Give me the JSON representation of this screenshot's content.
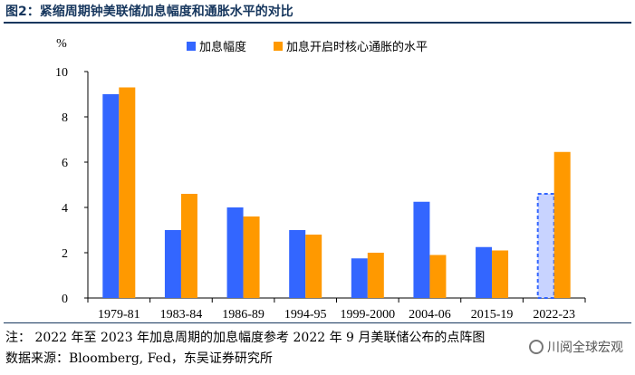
{
  "title": "图2：紧缩周期钟美联储加息幅度和通胀水平的对比",
  "notes": {
    "note1": "注：    2022 年至 2023 年加息周期的加息幅度参考 2022 年 9 月美联储公布的点阵图",
    "note2": "数据来源：Bloomberg, Fed，东吴证券研究所"
  },
  "watermark": "川阅全球宏观",
  "colors": {
    "blue": "#3366FF",
    "orange": "#FF9900",
    "title": "#17375E"
  },
  "chart_data": {
    "type": "bar",
    "ylabel": "%",
    "ylim": [
      0,
      10
    ],
    "yticks": [
      "0",
      "2",
      "4",
      "6",
      "8",
      "10"
    ],
    "categories": [
      "1979-81",
      "1983-84",
      "1986-89",
      "1994-95",
      "1999-2000",
      "2004-06",
      "2015-19",
      "2022-23"
    ],
    "series": [
      {
        "name": "加息幅度",
        "color": "#3366FF",
        "values": [
          9.0,
          3.0,
          4.0,
          3.0,
          1.75,
          4.25,
          2.25,
          4.6
        ],
        "dashed_last": true
      },
      {
        "name": "加息开启时核心通胀的水平",
        "color": "#FF9900",
        "values": [
          9.3,
          4.6,
          3.6,
          2.8,
          2.0,
          1.9,
          2.1,
          6.45
        ]
      }
    ],
    "legend_position": "top-center"
  }
}
